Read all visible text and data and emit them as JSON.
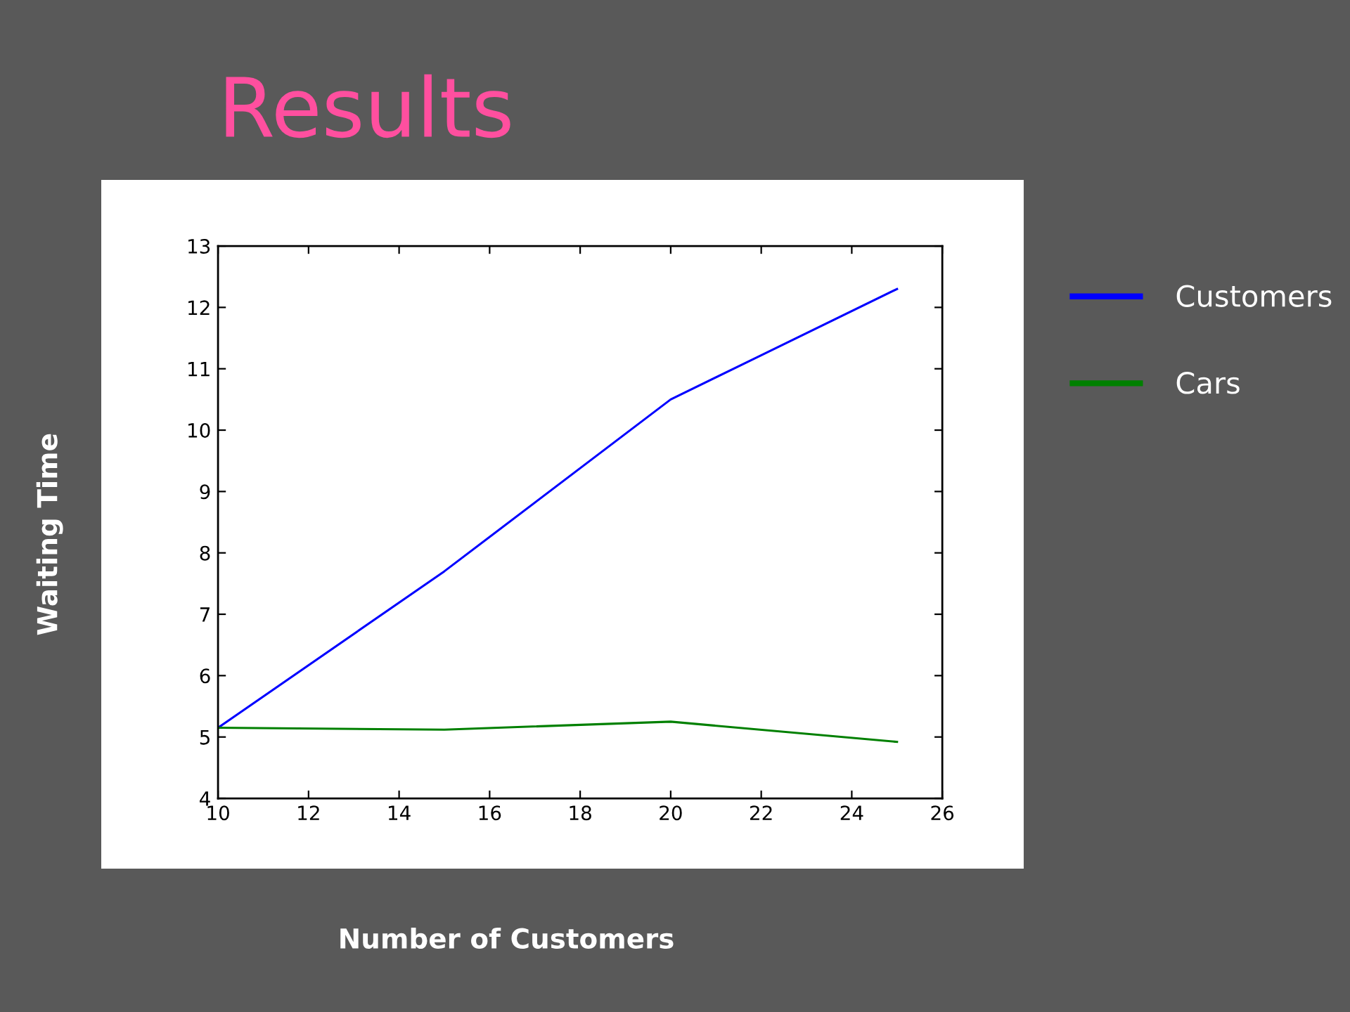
{
  "chart_data": {
    "type": "line",
    "title": "Results",
    "xlabel": "Number of Customers",
    "ylabel": "Waiting Time",
    "x": [
      10,
      15,
      20,
      25
    ],
    "series": [
      {
        "name": "Customers",
        "color": "#0000ff",
        "values": [
          5.15,
          7.7,
          10.5,
          12.3
        ]
      },
      {
        "name": "Cars",
        "color": "#008000",
        "values": [
          5.15,
          5.12,
          5.25,
          4.92
        ]
      }
    ],
    "xlim": [
      10,
      26
    ],
    "xticks": [
      10,
      12,
      14,
      16,
      18,
      20,
      22,
      24,
      26
    ],
    "ylim": [
      4,
      13
    ],
    "yticks": [
      4,
      5,
      6,
      7,
      8,
      9,
      10,
      11,
      12,
      13
    ],
    "legend": "top right",
    "line_style": "solid"
  }
}
